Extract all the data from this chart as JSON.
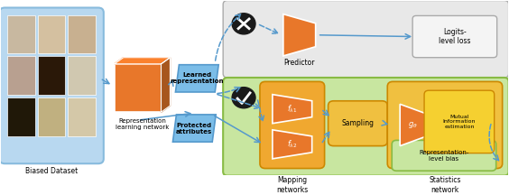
{
  "bg_color": "#ffffff",
  "face_grid_color": "#b8d8f0",
  "face_grid_label": "Biased Dataset",
  "nn_box_color": "#e8772a",
  "nn_label": "Representation\nlearning network",
  "learned_rep_color": "#7bbde8",
  "learned_rep_label": "Learned\nrepresentation",
  "protected_attr_color": "#7bbde8",
  "protected_attr_label": "Protected\nattributes",
  "gray_box_color": "#e8e8e8",
  "gray_box_border": "#aaaaaa",
  "logits_label": "Logits-\nlevel loss",
  "predictor_label": "Predictor",
  "green_box_color": "#c8e6a0",
  "green_box_border": "#88bb44",
  "mapping_color": "#f0a830",
  "mapping_label": "Mapping\nnetworks",
  "mapping_fn1": "$f_{\\lambda 1}$",
  "mapping_fn2": "$f_{\\lambda 2}$",
  "sampling_color": "#f0c040",
  "sampling_label": "Sampling",
  "stats_color": "#f0c040",
  "stats_label": "Statistics\nnetwork",
  "stats_fn": "$g_{\\theta}$",
  "mutual_info_label": "Mutual\nInformation\nestimation",
  "repr_bias_color": "#c8e6a0",
  "repr_bias_border": "#88bb44",
  "repr_bias_label": "Representation-\nlevel bias",
  "arrow_color": "#5599cc",
  "face_colors": [
    [
      "#c8a888",
      "#d4b898",
      "#c8aa88"
    ],
    [
      "#b09090",
      "#3a2010",
      "#d0c8b0"
    ],
    [
      "#2a2818",
      "#b8a870",
      "#d4c8a8"
    ]
  ]
}
